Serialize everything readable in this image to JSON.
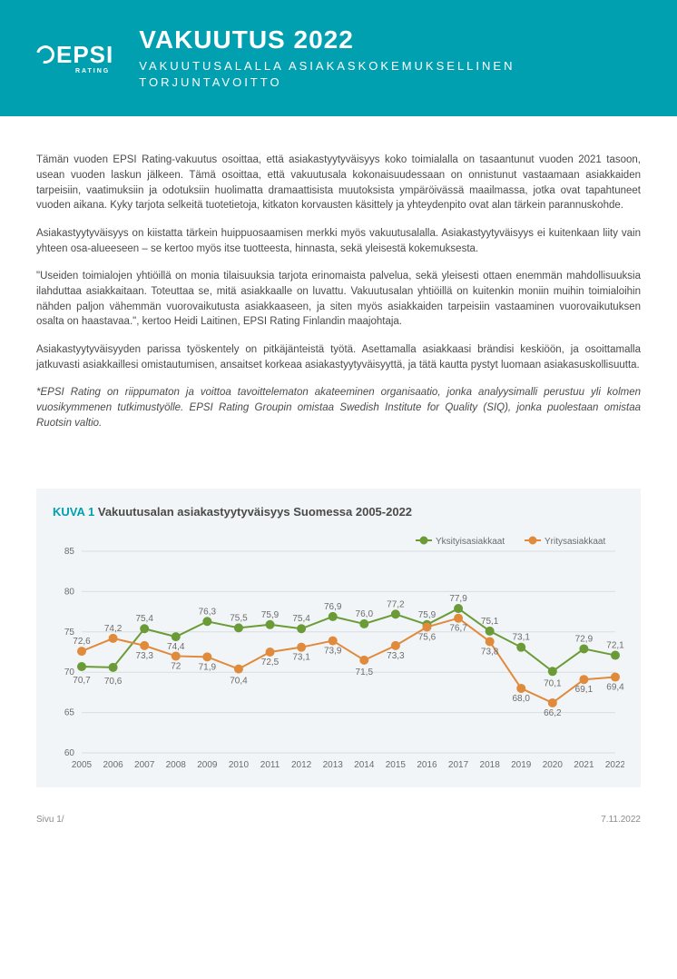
{
  "header": {
    "logo_main": "EPSI",
    "logo_sub": "RATING",
    "title": "VAKUUTUS 2022",
    "subtitle": "VAKUUTUSALALLA ASIAKASKOKEMUKSELLINEN TORJUNTAVOITTO"
  },
  "paragraphs": {
    "p1": "Tämän vuoden EPSI Rating-vakuutus osoittaa, että asiakastyytyväisyys koko  toimialalla on tasaantunut vuoden 2021 tasoon, usean vuoden laskun jälkeen.  Tämä osoittaa, että  vakuutusala kokonaisuudessaan on onnistunut vastaamaan asiakkaiden tarpeisiin, vaatimuksiin ja odotuksiin huolimatta dramaattisista muutoksista ympäröivässä maailmassa, jotka ovat tapahtuneet vuoden aikana.  Kyky tarjota selkeitä tuotetietoja, kitkaton korvausten käsittely ja yhteydenpito ovat alan tärkein parannuskohde.",
    "p2": "Asiakastyytyväisyys on kiistatta tärkein huippuosaamisen merkki myös vakuutusalalla. Asiakastyytyväisyys ei kuitenkaan liity vain yhteen osa-alueeseen – se kertoo myös itse tuotteesta, hinnasta, sekä yleisestä kokemuksesta.",
    "p3": "\"Useiden toimialojen yhtiöillä on monia tilaisuuksia tarjota erinomaista palvelua, sekä yleisesti ottaen enemmän mahdollisuuksia ilahduttaa asiakkaitaan. Toteuttaa se, mitä asiakkaalle on luvattu. Vakuutusalan yhtiöillä on kuitenkin moniin muihin toimialoihin nähden paljon vähemmän vuorovaikutusta asiakkaaseen, ja siten myös asiakkaiden tarpeisiin vastaaminen vuorovaikutuksen osalta on haastavaa.\", kertoo Heidi Laitinen, EPSI Rating Finlandin maajohtaja.",
    "p4": "Asiakastyytyväisyyden parissa työskentely on pitkäjänteistä työtä. Asettamalla asiakkaasi brändisi keskiöön, ja osoittamalla jatkuvasti asiakkaillesi omistautumisen, ansaitset korkeaa asiakastyytyväisyyttä, ja tätä kautta pystyt luomaan asiakasuskollisuutta.",
    "p5": "*EPSI Rating on riippumaton ja voittoa tavoittelematon akateeminen organisaatio, jonka analyysimalli perustuu yli kolmen vuosikymmenen tutkimustyölle. EPSI Rating Groupin omistaa Swedish Institute for Quality (SIQ), jonka puolestaan omistaa Ruotsin valtio."
  },
  "chart": {
    "type": "line",
    "title_prefix": "KUVA 1",
    "title_text": "Vakuutusalan asiakastyytyväisyys Suomessa 2005-2022",
    "background_color": "#f2f5f7",
    "plot_background": "#f2f5f7",
    "grid_color": "#d9dde0",
    "axis_color": "#bfc5c9",
    "text_color": "#6b6b6b",
    "label_fontsize": 10,
    "xlabels": [
      "2005",
      "2006",
      "2007",
      "2008",
      "2009",
      "2010",
      "2011",
      "2012",
      "2013",
      "2014",
      "2015",
      "2016",
      "2017",
      "2018",
      "2019",
      "2020",
      "2021",
      "2022"
    ],
    "ylim": [
      60,
      85
    ],
    "ytick_step": 5,
    "series": [
      {
        "name": "Yksityisasiakkaat",
        "color": "#6b9b37",
        "marker": "circle",
        "marker_size": 5,
        "line_width": 2,
        "values": [
          70.7,
          70.6,
          75.4,
          74.4,
          76.3,
          75.5,
          75.9,
          75.4,
          76.9,
          76.0,
          77.2,
          75.9,
          77.9,
          75.1,
          73.1,
          70.1,
          72.9,
          72.1
        ],
        "labels": [
          "70,7",
          "70,6",
          "75,4",
          "74,4",
          "76,3",
          "75,5",
          "75,9",
          "75,4",
          "76,9",
          "76,0",
          "77,2",
          "75,9",
          "77,9",
          "75,1",
          "73,1",
          "70,1",
          "72,9",
          "72,1"
        ]
      },
      {
        "name": "Yritysasiakkaat",
        "color": "#e08a3c",
        "marker": "circle",
        "marker_size": 5,
        "line_width": 2,
        "values": [
          72.6,
          74.2,
          73.3,
          72.0,
          71.9,
          70.4,
          72.5,
          73.1,
          73.9,
          71.5,
          73.3,
          75.6,
          76.7,
          73.8,
          68.0,
          66.2,
          69.1,
          69.4
        ],
        "labels": [
          "72,6",
          "74,2",
          "73,3",
          "72",
          "71,9",
          "70,4",
          "72,5",
          "73,1",
          "73,9",
          "71,5",
          "73,3",
          "75,6",
          "76,7",
          "73,8",
          "68,0",
          "66,2",
          "69,1",
          "69,4"
        ]
      }
    ],
    "legend_position": "top-right"
  },
  "footer": {
    "left": "Sivu 1/",
    "right": "7.11.2022"
  }
}
